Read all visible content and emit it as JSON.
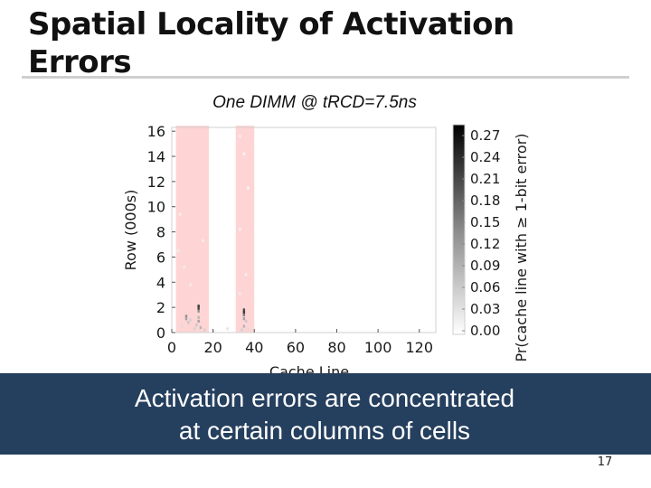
{
  "slide": {
    "title": "Spatial Locality of Activation Errors",
    "banner_line1": "Activation errors are concentrated",
    "banner_line2": "at certain columns of cells",
    "page_number": "17"
  },
  "colors": {
    "banner_bg": "#253f5e",
    "highlight": "#ffd4d4",
    "rule": "#cfcfcf"
  },
  "chart_data": {
    "type": "heatmap",
    "title": "One DIMM @ tRCD=7.5ns",
    "xlabel": "Cache Line",
    "ylabel": "Row (000s)",
    "xlim": [
      0,
      128
    ],
    "ylim": [
      0,
      16.3
    ],
    "x_ticks": [
      0,
      20,
      40,
      60,
      80,
      100,
      120
    ],
    "y_ticks": [
      0,
      2,
      4,
      6,
      8,
      10,
      12,
      14,
      16
    ],
    "colorbar": {
      "label": "Pr(cache line with ≥ 1-bit error)",
      "range": [
        0,
        0.28
      ],
      "ticks": [
        "0.27",
        "0.24",
        "0.21",
        "0.18",
        "0.15",
        "0.12",
        "0.09",
        "0.06",
        "0.03",
        "0.00"
      ],
      "colormap": "gray-reversed"
    },
    "highlighted_columns": [
      {
        "x_start": 2,
        "x_end": 18
      },
      {
        "x_start": 31,
        "x_end": 40
      }
    ],
    "points": [
      {
        "x": 13,
        "y": 2.1,
        "v": 0.22
      },
      {
        "x": 13,
        "y": 1.9,
        "v": 0.2
      },
      {
        "x": 13,
        "y": 1.7,
        "v": 0.12
      },
      {
        "x": 13,
        "y": 1.2,
        "v": 0.08
      },
      {
        "x": 13,
        "y": 0.9,
        "v": 0.1
      },
      {
        "x": 12,
        "y": 0.6,
        "v": 0.06
      },
      {
        "x": 7,
        "y": 1.3,
        "v": 0.12
      },
      {
        "x": 7,
        "y": 1.1,
        "v": 0.1
      },
      {
        "x": 8,
        "y": 0.8,
        "v": 0.06
      },
      {
        "x": 9,
        "y": 1.0,
        "v": 0.05
      },
      {
        "x": 14,
        "y": 0.4,
        "v": 0.08
      },
      {
        "x": 5,
        "y": 0.5,
        "v": 0.04
      },
      {
        "x": 11,
        "y": 0.3,
        "v": 0.05
      },
      {
        "x": 16,
        "y": 0.2,
        "v": 0.05
      },
      {
        "x": 20,
        "y": 0.1,
        "v": 0.03
      },
      {
        "x": 27,
        "y": 0.3,
        "v": 0.03
      },
      {
        "x": 3,
        "y": 6.5,
        "v": 0.02
      },
      {
        "x": 6,
        "y": 5.2,
        "v": 0.02
      },
      {
        "x": 9,
        "y": 3.8,
        "v": 0.02
      },
      {
        "x": 4,
        "y": 9.4,
        "v": 0.015
      },
      {
        "x": 15,
        "y": 7.3,
        "v": 0.015
      },
      {
        "x": 35,
        "y": 1.8,
        "v": 0.2
      },
      {
        "x": 35,
        "y": 1.6,
        "v": 0.22
      },
      {
        "x": 35,
        "y": 1.4,
        "v": 0.14
      },
      {
        "x": 35,
        "y": 1.1,
        "v": 0.1
      },
      {
        "x": 36,
        "y": 0.9,
        "v": 0.06
      },
      {
        "x": 35,
        "y": 0.5,
        "v": 0.08
      },
      {
        "x": 34,
        "y": 0.2,
        "v": 0.05
      },
      {
        "x": 37,
        "y": 0.3,
        "v": 0.04
      },
      {
        "x": 33,
        "y": 3.1,
        "v": 0.02
      },
      {
        "x": 36,
        "y": 4.6,
        "v": 0.015
      },
      {
        "x": 33,
        "y": 8.2,
        "v": 0.015
      },
      {
        "x": 37,
        "y": 11.5,
        "v": 0.01
      },
      {
        "x": 35,
        "y": 14.2,
        "v": 0.01
      },
      {
        "x": 33,
        "y": 15.6,
        "v": 0.015
      }
    ]
  }
}
